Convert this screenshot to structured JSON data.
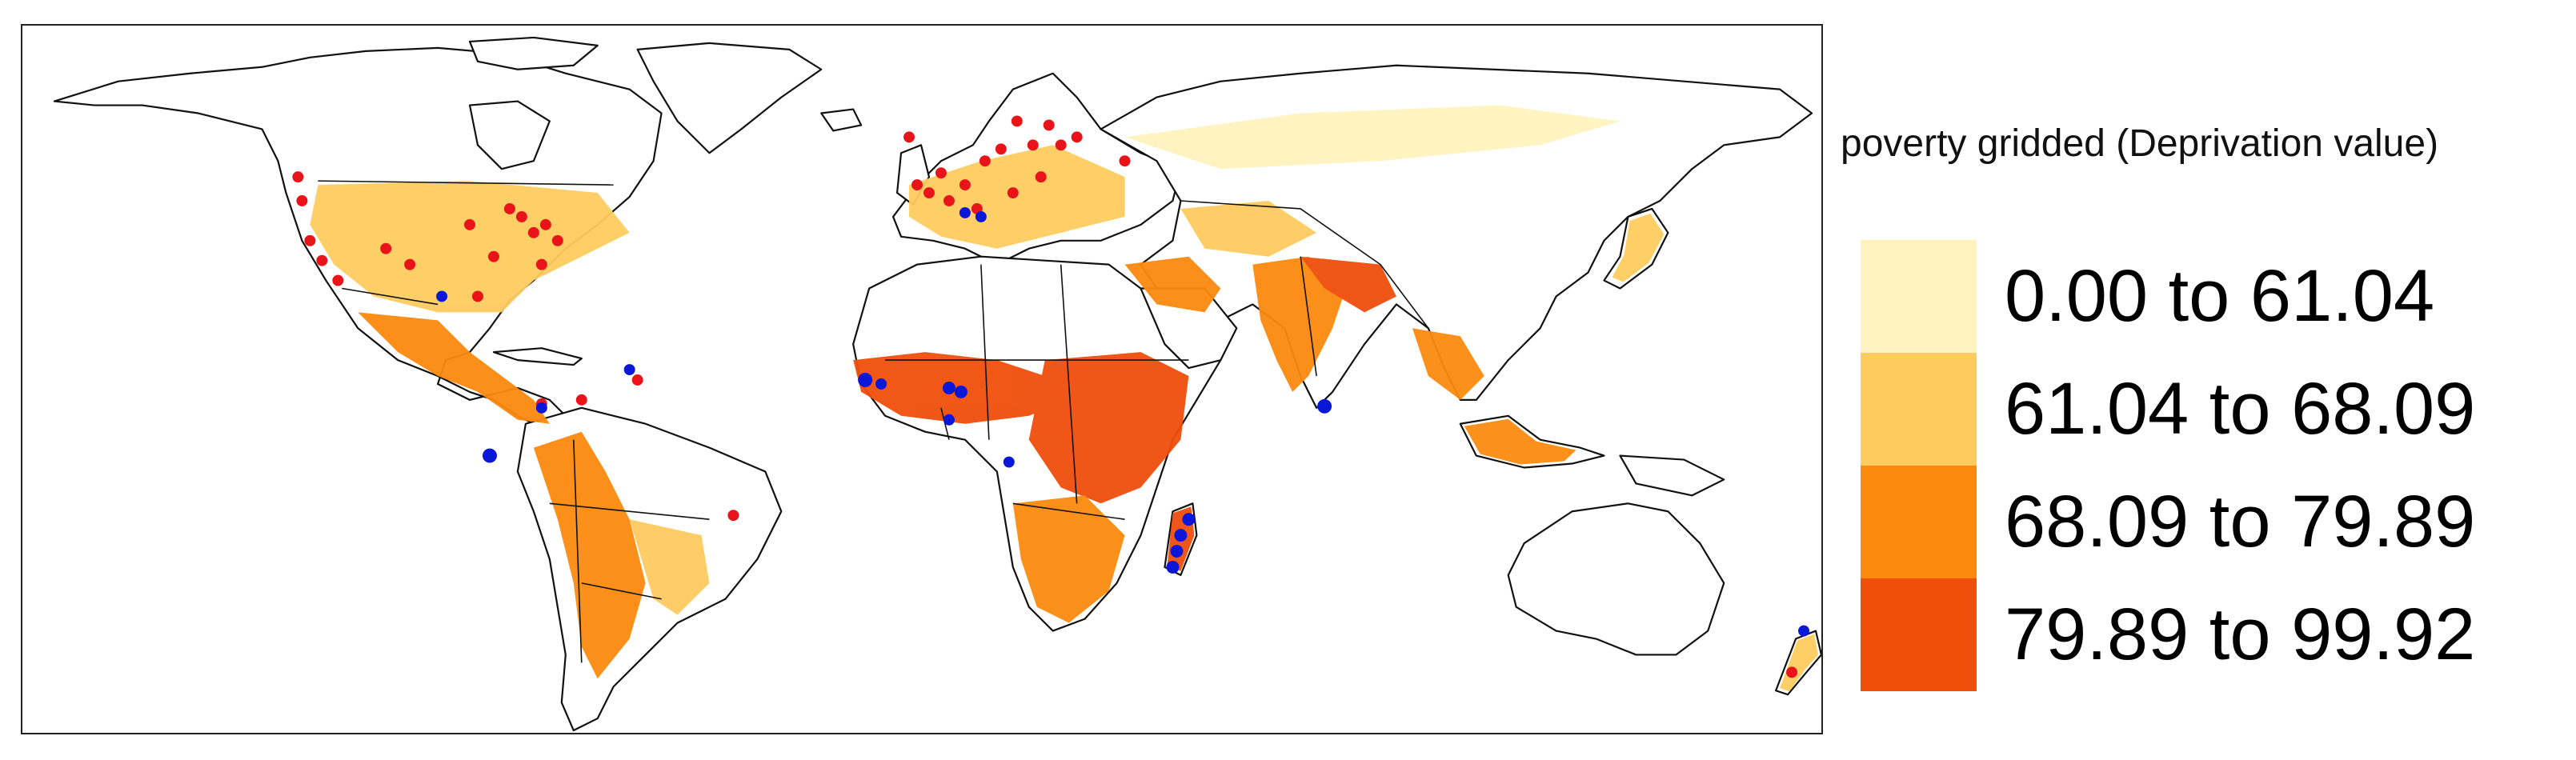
{
  "legend": {
    "title": "poverty gridded (Deprivation value)",
    "classes": [
      {
        "label": "0.00 to 61.04",
        "color": "#FFF3BF"
      },
      {
        "label": "61.04 to 68.09",
        "color": "#FECB5F"
      },
      {
        "label": "68.09 to 79.89",
        "color": "#FB8A0E"
      },
      {
        "label": "79.89 to 99.92",
        "color": "#F04E0B"
      }
    ]
  },
  "colors": {
    "no_data": "#d9d9d9",
    "border": "#111111",
    "point_red": "#e8141a",
    "point_blue": "#0a16d8"
  }
}
